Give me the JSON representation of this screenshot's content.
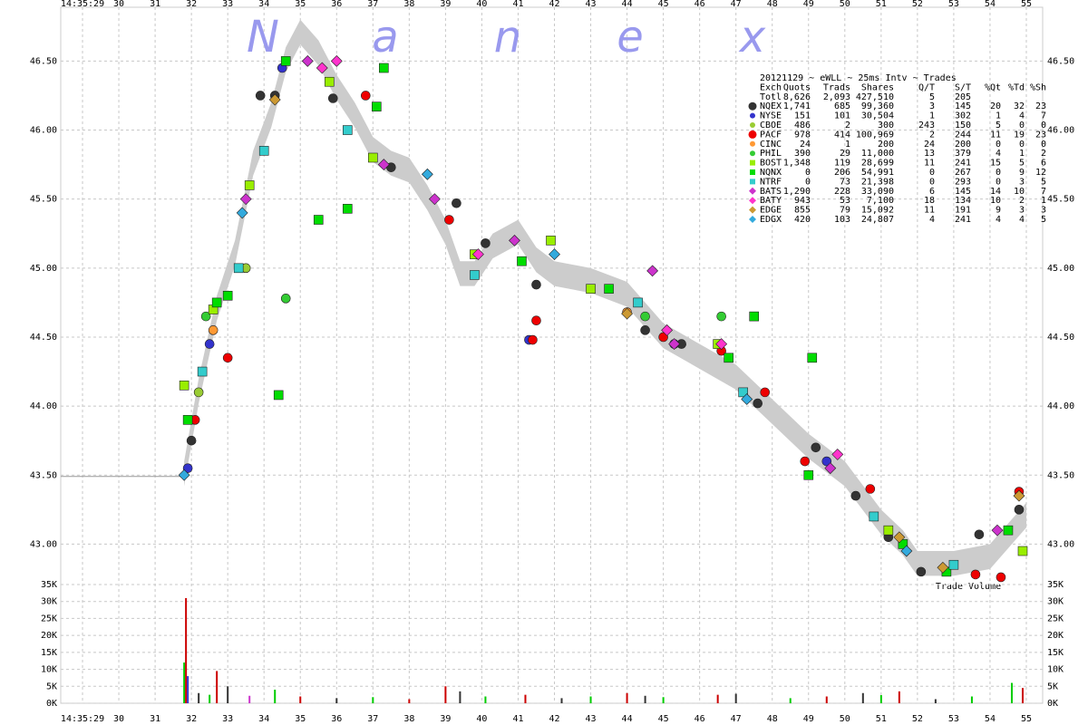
{
  "chart_data": {
    "type": "scatter",
    "watermark": [
      "N",
      "a",
      "n",
      "e",
      "x"
    ],
    "volume_label": "Trade Volume",
    "xlim": [
      28.4,
      55.45
    ],
    "xticks": [
      {
        "value": 29,
        "label": "14:35:29"
      },
      30,
      31,
      32,
      33,
      34,
      35,
      36,
      37,
      38,
      39,
      40,
      41,
      42,
      43,
      44,
      45,
      46,
      47,
      48,
      49,
      50,
      51,
      52,
      53,
      54,
      55
    ],
    "ylim": [
      42.74,
      46.89
    ],
    "yticks": [
      {
        "value": 43,
        "label": "43.00"
      },
      {
        "value": 43.5,
        "label": "43.50"
      },
      {
        "value": 44,
        "label": "44.00"
      },
      {
        "value": 44.5,
        "label": "44.50"
      },
      {
        "value": 45,
        "label": "45.00"
      },
      {
        "value": 45.5,
        "label": "45.50"
      },
      {
        "value": 46,
        "label": "46.00"
      },
      {
        "value": 46.5,
        "label": "46.50"
      }
    ],
    "grid": true,
    "prior_line": {
      "x": [
        28.4,
        31.8
      ],
      "values": [
        43.49,
        43.49
      ],
      "color": "#999999"
    },
    "band": {
      "color": "#cccccc",
      "x": [
        31.8,
        32.2,
        32.7,
        33.2,
        33.7,
        34.2,
        34.6,
        35.0,
        35.5,
        36.0,
        36.5,
        37.0,
        37.5,
        38.0,
        38.5,
        39.0,
        39.4,
        39.8,
        40.3,
        41.0,
        41.5,
        42.0,
        43.0,
        44.0,
        45.0,
        46.0,
        47.0,
        48.0,
        49.0,
        50.0,
        51.0,
        51.6,
        52.0,
        53.0,
        54.0,
        55.0
      ],
      "high": [
        43.6,
        44.2,
        44.8,
        45.2,
        45.85,
        46.2,
        46.6,
        46.8,
        46.65,
        46.4,
        46.2,
        45.95,
        45.85,
        45.8,
        45.6,
        45.35,
        45.05,
        45.05,
        45.25,
        45.35,
        45.15,
        45.05,
        45.0,
        44.9,
        44.6,
        44.45,
        44.3,
        44.05,
        43.8,
        43.6,
        43.25,
        43.1,
        42.95,
        42.95,
        43.0,
        43.3
      ],
      "low": [
        43.42,
        44.02,
        44.62,
        45.02,
        45.67,
        46.02,
        46.42,
        46.62,
        46.47,
        46.22,
        46.02,
        45.77,
        45.67,
        45.62,
        45.42,
        45.17,
        44.87,
        44.87,
        45.07,
        45.17,
        44.97,
        44.87,
        44.82,
        44.72,
        44.42,
        44.27,
        44.12,
        43.87,
        43.62,
        43.42,
        43.07,
        42.92,
        42.77,
        42.77,
        42.82,
        43.12
      ]
    },
    "series": [
      {
        "name": "NQEX",
        "color": "#333333",
        "marker": "circle",
        "x": [
          32.0,
          33.9,
          34.3,
          35.9,
          37.5,
          39.3,
          40.1,
          41.5,
          44.5,
          45.5,
          47.6,
          49.2,
          50.3,
          51.2,
          52.1,
          53.7,
          54.8
        ],
        "values": [
          43.75,
          46.25,
          46.25,
          46.23,
          45.73,
          45.47,
          45.18,
          44.88,
          44.55,
          44.45,
          44.02,
          43.7,
          43.35,
          43.05,
          42.8,
          43.07,
          43.25
        ]
      },
      {
        "name": "NYSE",
        "color": "#3333cc",
        "marker": "circle",
        "x": [
          31.9,
          32.5,
          34.5,
          41.3,
          45.3,
          49.5
        ],
        "values": [
          43.55,
          44.45,
          46.45,
          44.48,
          44.45,
          43.6
        ]
      },
      {
        "name": "CBOE",
        "color": "#99cc33",
        "marker": "circle",
        "x": [
          32.2,
          33.5
        ],
        "values": [
          44.1,
          45.0
        ]
      },
      {
        "name": "PACF",
        "color": "#ee0000",
        "marker": "circle",
        "x": [
          32.1,
          33.0,
          36.8,
          39.1,
          41.4,
          41.5,
          45.0,
          46.6,
          47.8,
          48.9,
          50.7,
          53.6,
          54.3,
          54.8
        ],
        "values": [
          43.9,
          44.35,
          46.25,
          45.35,
          44.48,
          44.62,
          44.5,
          44.4,
          44.1,
          43.6,
          43.4,
          42.78,
          42.76,
          43.38
        ]
      },
      {
        "name": "CINC",
        "color": "#ff9933",
        "marker": "circle",
        "x": [
          32.6,
          44.0
        ],
        "values": [
          44.55,
          44.68
        ]
      },
      {
        "name": "PHIL",
        "color": "#33cc33",
        "marker": "circle",
        "x": [
          32.4,
          34.6,
          44.5,
          46.6
        ],
        "values": [
          44.65,
          44.78,
          44.65,
          44.65
        ]
      },
      {
        "name": "BOST",
        "color": "#99ee00",
        "marker": "square",
        "x": [
          31.8,
          32.6,
          33.6,
          35.8,
          37.0,
          39.8,
          41.9,
          43.0,
          46.5,
          51.2,
          54.9
        ],
        "values": [
          44.15,
          44.7,
          45.6,
          46.35,
          45.8,
          45.1,
          45.2,
          44.85,
          44.45,
          43.1,
          42.95
        ]
      },
      {
        "name": "NQNX",
        "color": "#00dd00",
        "marker": "square",
        "x": [
          31.9,
          32.7,
          33.0,
          34.4,
          34.6,
          35.5,
          36.3,
          37.1,
          37.3,
          41.1,
          43.5,
          46.8,
          47.5,
          49.0,
          49.1,
          51.6,
          52.8,
          54.5
        ],
        "values": [
          43.9,
          44.75,
          44.8,
          44.08,
          46.5,
          45.35,
          45.43,
          46.17,
          46.45,
          45.05,
          44.85,
          44.35,
          44.65,
          43.5,
          44.35,
          43.0,
          42.8,
          43.1
        ]
      },
      {
        "name": "NTRF",
        "color": "#33cccc",
        "marker": "square",
        "x": [
          32.3,
          33.3,
          34.0,
          36.3,
          39.8,
          44.3,
          47.2,
          50.8,
          53.0
        ],
        "values": [
          44.25,
          45.0,
          45.85,
          46.0,
          44.95,
          44.75,
          44.1,
          43.2,
          42.85
        ]
      },
      {
        "name": "BATS",
        "color": "#cc33cc",
        "marker": "diamond",
        "x": [
          33.5,
          35.2,
          37.3,
          38.7,
          40.9,
          44.7,
          45.3,
          49.6,
          54.2
        ],
        "values": [
          45.5,
          46.5,
          45.75,
          45.5,
          45.2,
          44.98,
          44.45,
          43.55,
          43.1
        ]
      },
      {
        "name": "BATY",
        "color": "#ff33cc",
        "marker": "diamond",
        "x": [
          35.6,
          36.0,
          39.9,
          45.1,
          46.6,
          49.8
        ],
        "values": [
          46.45,
          46.5,
          45.1,
          44.55,
          44.45,
          43.65
        ]
      },
      {
        "name": "EDGE",
        "color": "#cc9933",
        "marker": "diamond",
        "x": [
          34.3,
          44.0,
          51.5,
          52.7,
          54.8
        ],
        "values": [
          46.22,
          44.67,
          43.05,
          42.83,
          43.35
        ]
      },
      {
        "name": "EDGX",
        "color": "#33aadd",
        "marker": "diamond",
        "x": [
          31.8,
          33.4,
          38.5,
          42.0,
          47.3,
          51.7
        ],
        "values": [
          43.5,
          45.4,
          45.68,
          45.1,
          44.05,
          42.95
        ]
      }
    ],
    "volume": {
      "ylim": [
        0,
        35000
      ],
      "yticks": [
        {
          "value": 0,
          "label": "0K"
        },
        {
          "value": 5000,
          "label": "5K"
        },
        {
          "value": 10000,
          "label": "10K"
        },
        {
          "value": 15000,
          "label": "15K"
        },
        {
          "value": 20000,
          "label": "20K"
        },
        {
          "value": 25000,
          "label": "25K"
        },
        {
          "value": 30000,
          "label": "30K"
        },
        {
          "value": 35000,
          "label": "35K"
        }
      ],
      "x": [
        31.8,
        31.85,
        31.9,
        32.2,
        32.5,
        32.7,
        33.0,
        33.6,
        34.3,
        35.0,
        36.0,
        37.0,
        38.0,
        39.0,
        39.4,
        40.1,
        41.2,
        42.2,
        43.0,
        44.0,
        44.5,
        45.0,
        46.5,
        47.0,
        48.5,
        49.5,
        50.5,
        51.0,
        51.5,
        52.5,
        53.5,
        54.6,
        54.9
      ],
      "values": [
        12000,
        31000,
        8000,
        3000,
        2500,
        9500,
        5000,
        2200,
        4000,
        2000,
        1500,
        1800,
        1200,
        5000,
        3500,
        2000,
        2500,
        1500,
        2000,
        3000,
        2200,
        1800,
        2500,
        2800,
        1500,
        2000,
        3000,
        2400,
        3500,
        1200,
        2000,
        6000,
        4500
      ],
      "colors": [
        "#00cc00",
        "#cc0000",
        "#3333cc",
        "#333333",
        "#00cc00",
        "#cc0000",
        "#333333",
        "#cc33cc",
        "#00cc00",
        "#cc0000",
        "#333333",
        "#00cc00",
        "#cc0000",
        "#cc0000",
        "#333333",
        "#00cc00",
        "#cc0000",
        "#333333",
        "#00cc00",
        "#cc0000",
        "#333333",
        "#00cc00",
        "#cc0000",
        "#333333",
        "#00cc00",
        "#cc0000",
        "#333333",
        "#00cc00",
        "#cc0000",
        "#333333",
        "#00cc00",
        "#00cc00",
        "#cc0000"
      ]
    },
    "stats_table": {
      "title": "20121129 ~ eWLL ~ 25ms Intv ~ Trades",
      "columns": [
        "Exch",
        "Quots",
        "Trads",
        "Shares",
        "Q/T",
        "S/T",
        "%Qt",
        "%Td",
        "%Sh"
      ],
      "rows": [
        [
          "Totl",
          "8,626",
          "2,093",
          "427,510",
          "5",
          "205"
        ],
        [
          "NQEX",
          "1,741",
          "685",
          "99,360",
          "3",
          "145",
          "20",
          "32",
          "23"
        ],
        [
          "NYSE",
          "151",
          "101",
          "30,504",
          "1",
          "302",
          "1",
          "4",
          "7"
        ],
        [
          "CBOE",
          "486",
          "2",
          "300",
          "243",
          "150",
          "5",
          "0",
          "0"
        ],
        [
          "PACF",
          "978",
          "414",
          "100,969",
          "2",
          "244",
          "11",
          "19",
          "23"
        ],
        [
          "CINC",
          "24",
          "1",
          "200",
          "24",
          "200",
          "0",
          "0",
          "0"
        ],
        [
          "PHIL",
          "390",
          "29",
          "11,000",
          "13",
          "379",
          "4",
          "1",
          "2"
        ],
        [
          "BOST",
          "1,348",
          "119",
          "28,699",
          "11",
          "241",
          "15",
          "5",
          "6"
        ],
        [
          "NQNX",
          "0",
          "206",
          "54,991",
          "0",
          "267",
          "0",
          "9",
          "12"
        ],
        [
          "NTRF",
          "0",
          "73",
          "21,398",
          "0",
          "293",
          "0",
          "3",
          "5"
        ],
        [
          "BATS",
          "1,290",
          "228",
          "33,090",
          "6",
          "145",
          "14",
          "10",
          "7"
        ],
        [
          "BATY",
          "943",
          "53",
          "7,100",
          "18",
          "134",
          "10",
          "2",
          "1"
        ],
        [
          "EDGE",
          "855",
          "79",
          "15,092",
          "11",
          "191",
          "9",
          "3",
          "3"
        ],
        [
          "EDGX",
          "420",
          "103",
          "24,807",
          "4",
          "241",
          "4",
          "4",
          "5"
        ]
      ]
    }
  }
}
